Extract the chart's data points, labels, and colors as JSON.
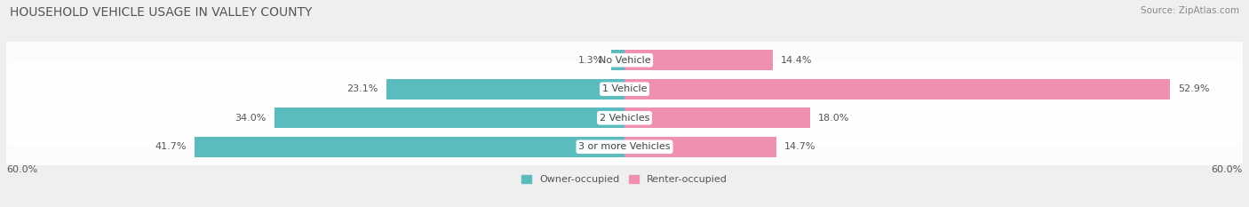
{
  "title": "HOUSEHOLD VEHICLE USAGE IN VALLEY COUNTY",
  "source": "Source: ZipAtlas.com",
  "categories": [
    "No Vehicle",
    "1 Vehicle",
    "2 Vehicles",
    "3 or more Vehicles"
  ],
  "owner_values": [
    1.3,
    23.1,
    34.0,
    41.7
  ],
  "renter_values": [
    14.4,
    52.9,
    18.0,
    14.7
  ],
  "owner_color": "#5bbcbf",
  "renter_color": "#f090b0",
  "axis_max": 60.0,
  "axis_label": "60.0%",
  "bar_height": 0.72,
  "background_color": "#efefef",
  "row_bg_color": "#e0e0e0",
  "legend_owner": "Owner-occupied",
  "legend_renter": "Renter-occupied",
  "title_fontsize": 10,
  "source_fontsize": 7.5,
  "label_fontsize": 8,
  "category_fontsize": 8
}
